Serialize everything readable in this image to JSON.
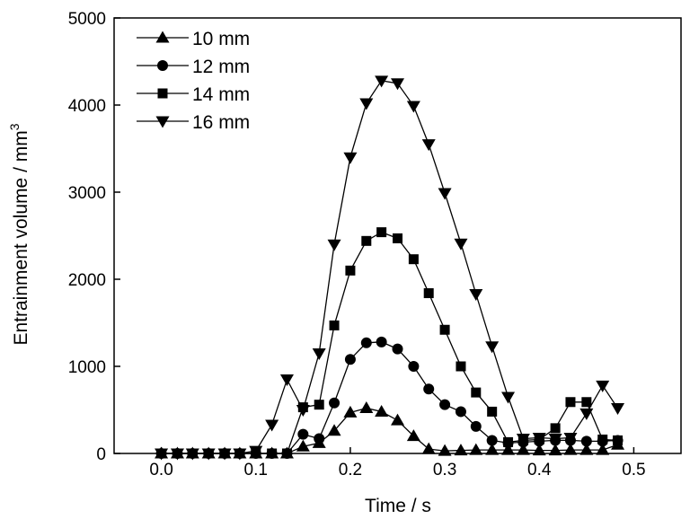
{
  "chart_data": {
    "type": "line",
    "xlabel": "Time / s",
    "ylabel": "Entrainment volume / mm",
    "ylabel_superscript": "3",
    "xlim": [
      -0.05,
      0.55
    ],
    "ylim": [
      0,
      5000
    ],
    "xticks": [
      0.0,
      0.1,
      0.2,
      0.3,
      0.4,
      0.5
    ],
    "xtick_labels": [
      "0.0",
      "0.1",
      "0.2",
      "0.3",
      "0.4",
      "0.5"
    ],
    "yticks": [
      0,
      1000,
      2000,
      3000,
      4000,
      5000
    ],
    "ytick_labels": [
      "0",
      "1000",
      "2000",
      "3000",
      "4000",
      "5000"
    ],
    "grid": false,
    "legend_position": "top-left",
    "series": [
      {
        "name": "10 mm",
        "marker": "triangle-up",
        "x": [
          0.0,
          0.017,
          0.033,
          0.05,
          0.067,
          0.083,
          0.1,
          0.117,
          0.133,
          0.15,
          0.167,
          0.183,
          0.2,
          0.217,
          0.233,
          0.25,
          0.267,
          0.283,
          0.3,
          0.317,
          0.333,
          0.35,
          0.367,
          0.383,
          0.4,
          0.417,
          0.433,
          0.45,
          0.467,
          0.483
        ],
        "y": [
          0,
          0,
          0,
          0,
          0,
          0,
          0,
          0,
          0,
          80,
          120,
          260,
          470,
          520,
          480,
          380,
          200,
          50,
          30,
          35,
          40,
          40,
          40,
          40,
          35,
          35,
          40,
          40,
          40,
          100
        ]
      },
      {
        "name": "12 mm",
        "marker": "circle",
        "x": [
          0.0,
          0.017,
          0.033,
          0.05,
          0.067,
          0.083,
          0.1,
          0.117,
          0.133,
          0.15,
          0.167,
          0.183,
          0.2,
          0.217,
          0.233,
          0.25,
          0.267,
          0.283,
          0.3,
          0.317,
          0.333,
          0.35,
          0.367,
          0.383,
          0.4,
          0.417,
          0.433,
          0.45,
          0.467,
          0.483
        ],
        "y": [
          0,
          0,
          0,
          0,
          0,
          0,
          0,
          0,
          0,
          220,
          170,
          580,
          1080,
          1270,
          1280,
          1200,
          1000,
          740,
          560,
          480,
          310,
          150,
          120,
          130,
          140,
          150,
          150,
          140,
          140,
          150
        ]
      },
      {
        "name": "14 mm",
        "marker": "square",
        "x": [
          0.0,
          0.017,
          0.033,
          0.05,
          0.067,
          0.083,
          0.1,
          0.117,
          0.133,
          0.15,
          0.167,
          0.183,
          0.2,
          0.217,
          0.233,
          0.25,
          0.267,
          0.283,
          0.3,
          0.317,
          0.333,
          0.35,
          0.367,
          0.383,
          0.4,
          0.417,
          0.433,
          0.45,
          0.467,
          0.483
        ],
        "y": [
          0,
          0,
          0,
          0,
          0,
          0,
          0,
          0,
          0,
          530,
          560,
          1470,
          2100,
          2440,
          2540,
          2470,
          2230,
          1840,
          1420,
          1000,
          700,
          480,
          130,
          150,
          160,
          290,
          590,
          590,
          160,
          150
        ]
      },
      {
        "name": "16 mm",
        "marker": "triangle-down",
        "x": [
          0.0,
          0.017,
          0.033,
          0.05,
          0.067,
          0.083,
          0.1,
          0.117,
          0.133,
          0.15,
          0.167,
          0.183,
          0.2,
          0.217,
          0.233,
          0.25,
          0.267,
          0.283,
          0.3,
          0.317,
          0.333,
          0.35,
          0.367,
          0.383,
          0.4,
          0.417,
          0.433,
          0.45,
          0.467,
          0.483
        ],
        "y": [
          0,
          0,
          0,
          0,
          0,
          0,
          30,
          330,
          850,
          500,
          1150,
          2400,
          3400,
          4020,
          4280,
          4250,
          3990,
          3550,
          2990,
          2410,
          1830,
          1230,
          650,
          170,
          180,
          170,
          180,
          460,
          780,
          520
        ]
      }
    ]
  }
}
